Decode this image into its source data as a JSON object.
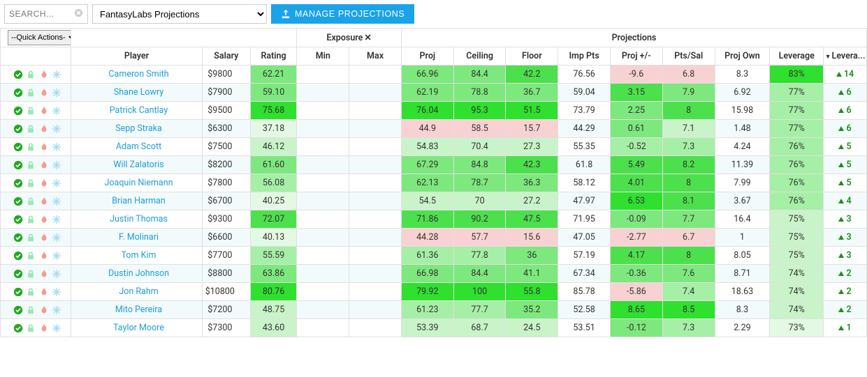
{
  "search": {
    "placeholder": "SEARCH..."
  },
  "projection_source": {
    "selected": "FantasyLabs Projections"
  },
  "manage_btn": "MANAGE PROJECTIONS",
  "quick_actions": {
    "selected": "--Quick Actions-"
  },
  "group_headers": {
    "exposure": "Exposure",
    "projections": "Projections"
  },
  "columns": {
    "player": "Player",
    "salary": "Salary",
    "rating": "Rating",
    "min": "Min",
    "max": "Max",
    "proj": "Proj",
    "ceiling": "Ceiling",
    "floor": "Floor",
    "imp_pts": "Imp Pts",
    "proj_pm": "Proj +/-",
    "pts_sal": "Pts/Sal",
    "proj_own": "Proj Own",
    "leverage": "Leverage",
    "lev_delta": "Levera..."
  },
  "palette": {
    "link": "#1c9ed9",
    "btn": "#1aa3e8",
    "green_bright": "#2fe02f",
    "green_strong": "#4de04d",
    "green_mid": "#7de87d",
    "green_light": "#a6efa6",
    "green_pale": "#c9f4c9",
    "green_vpale": "#e3f9e3",
    "pink": "#f8d2d2",
    "pink_pale": "#fbe5e5",
    "row_alt": "#eef7fb",
    "icon_check": "#1fa81f",
    "icon_lock": "#9ee6b8",
    "icon_fire": "#f29d8e",
    "icon_snow": "#a9d8ef",
    "delta_green": "#1a8f1a"
  },
  "heat_rules": {
    "rating": {
      "min": 35,
      "max": 82,
      "scale": "green"
    },
    "proj": {
      "min": 43,
      "max": 80,
      "scale": "green_pink",
      "pink_below": 46
    },
    "ceiling": {
      "min": 57,
      "max": 100,
      "scale": "green_pink",
      "pink_below": 60
    },
    "floor": {
      "min": 14,
      "max": 56,
      "scale": "green_pink",
      "pink_below": 17
    },
    "proj_pm": {
      "min": -10,
      "max": 9,
      "scale": "green_pink",
      "pink_below": -2.5
    },
    "pts_sal": {
      "min": 6.6,
      "max": 8.6,
      "scale": "green_pink",
      "pink_below": 6.9
    },
    "leverage": {
      "min": 72,
      "max": 84,
      "scale": "green"
    }
  },
  "rows": [
    {
      "player": "Cameron Smith",
      "salary": 9800,
      "rating": "62.21",
      "proj": "66.96",
      "ceiling": "84.4",
      "floor": "42.2",
      "imp_pts": "76.56",
      "proj_pm": "-9.6",
      "pts_sal": "6.8",
      "proj_own": "8.3",
      "leverage": "83%",
      "lev_delta": 14
    },
    {
      "player": "Shane Lowry",
      "salary": 7900,
      "rating": "59.10",
      "proj": "62.19",
      "ceiling": "78.8",
      "floor": "36.7",
      "imp_pts": "59.04",
      "proj_pm": "3.15",
      "pts_sal": "7.9",
      "proj_own": "6.92",
      "leverage": "77%",
      "lev_delta": 6
    },
    {
      "player": "Patrick Cantlay",
      "salary": 9500,
      "rating": "75.68",
      "proj": "76.04",
      "ceiling": "95.3",
      "floor": "51.5",
      "imp_pts": "73.79",
      "proj_pm": "2.25",
      "pts_sal": "8",
      "proj_own": "15.98",
      "leverage": "77%",
      "lev_delta": 6
    },
    {
      "player": "Sepp Straka",
      "salary": 6300,
      "rating": "37.18",
      "proj": "44.9",
      "ceiling": "58.5",
      "floor": "15.7",
      "imp_pts": "44.29",
      "proj_pm": "0.61",
      "pts_sal": "7.1",
      "proj_own": "1.48",
      "leverage": "77%",
      "lev_delta": 6
    },
    {
      "player": "Adam Scott",
      "salary": 7500,
      "rating": "46.12",
      "proj": "54.83",
      "ceiling": "70.4",
      "floor": "27.3",
      "imp_pts": "55.35",
      "proj_pm": "-0.52",
      "pts_sal": "7.3",
      "proj_own": "4.24",
      "leverage": "76%",
      "lev_delta": 5
    },
    {
      "player": "Will Zalatoris",
      "salary": 8200,
      "rating": "61.60",
      "proj": "67.29",
      "ceiling": "84.8",
      "floor": "42.3",
      "imp_pts": "61.8",
      "proj_pm": "5.49",
      "pts_sal": "8.2",
      "proj_own": "11.39",
      "leverage": "76%",
      "lev_delta": 5
    },
    {
      "player": "Joaquin Niemann",
      "salary": 7800,
      "rating": "56.08",
      "proj": "62.13",
      "ceiling": "78.7",
      "floor": "36.3",
      "imp_pts": "58.12",
      "proj_pm": "4.01",
      "pts_sal": "8",
      "proj_own": "7.99",
      "leverage": "76%",
      "lev_delta": 5
    },
    {
      "player": "Brian Harman",
      "salary": 6700,
      "rating": "40.25",
      "proj": "54.5",
      "ceiling": "70",
      "floor": "27.2",
      "imp_pts": "47.97",
      "proj_pm": "6.53",
      "pts_sal": "8.1",
      "proj_own": "3.67",
      "leverage": "76%",
      "lev_delta": 4
    },
    {
      "player": "Justin Thomas",
      "salary": 9300,
      "rating": "72.07",
      "proj": "71.86",
      "ceiling": "90.2",
      "floor": "47.5",
      "imp_pts": "71.95",
      "proj_pm": "-0.09",
      "pts_sal": "7.7",
      "proj_own": "16.4",
      "leverage": "75%",
      "lev_delta": 3
    },
    {
      "player": "F. Molinari",
      "salary": 6600,
      "rating": "40.13",
      "proj": "44.28",
      "ceiling": "57.7",
      "floor": "15.6",
      "imp_pts": "47.05",
      "proj_pm": "-2.77",
      "pts_sal": "6.7",
      "proj_own": "1",
      "leverage": "75%",
      "lev_delta": 3
    },
    {
      "player": "Tom Kim",
      "salary": 7700,
      "rating": "55.59",
      "proj": "61.36",
      "ceiling": "77.8",
      "floor": "36",
      "imp_pts": "57.19",
      "proj_pm": "4.17",
      "pts_sal": "8",
      "proj_own": "8.05",
      "leverage": "75%",
      "lev_delta": 3
    },
    {
      "player": "Dustin Johnson",
      "salary": 8800,
      "rating": "63.86",
      "proj": "66.98",
      "ceiling": "84.4",
      "floor": "41.1",
      "imp_pts": "67.34",
      "proj_pm": "-0.36",
      "pts_sal": "7.6",
      "proj_own": "8.71",
      "leverage": "74%",
      "lev_delta": 2
    },
    {
      "player": "Jon Rahm",
      "salary": 10800,
      "rating": "80.76",
      "proj": "79.92",
      "ceiling": "100",
      "floor": "55.8",
      "imp_pts": "85.78",
      "proj_pm": "-5.86",
      "pts_sal": "7.4",
      "proj_own": "18.63",
      "leverage": "74%",
      "lev_delta": 2
    },
    {
      "player": "Mito Pereira",
      "salary": 7200,
      "rating": "48.75",
      "proj": "61.23",
      "ceiling": "77.7",
      "floor": "35.2",
      "imp_pts": "52.58",
      "proj_pm": "8.65",
      "pts_sal": "8.5",
      "proj_own": "8.3",
      "leverage": "74%",
      "lev_delta": 2
    },
    {
      "player": "Taylor Moore",
      "salary": 7300,
      "rating": "43.60",
      "proj": "53.39",
      "ceiling": "68.7",
      "floor": "24.5",
      "imp_pts": "53.51",
      "proj_pm": "-0.12",
      "pts_sal": "7.3",
      "proj_own": "2.29",
      "leverage": "73%",
      "lev_delta": 1
    }
  ]
}
